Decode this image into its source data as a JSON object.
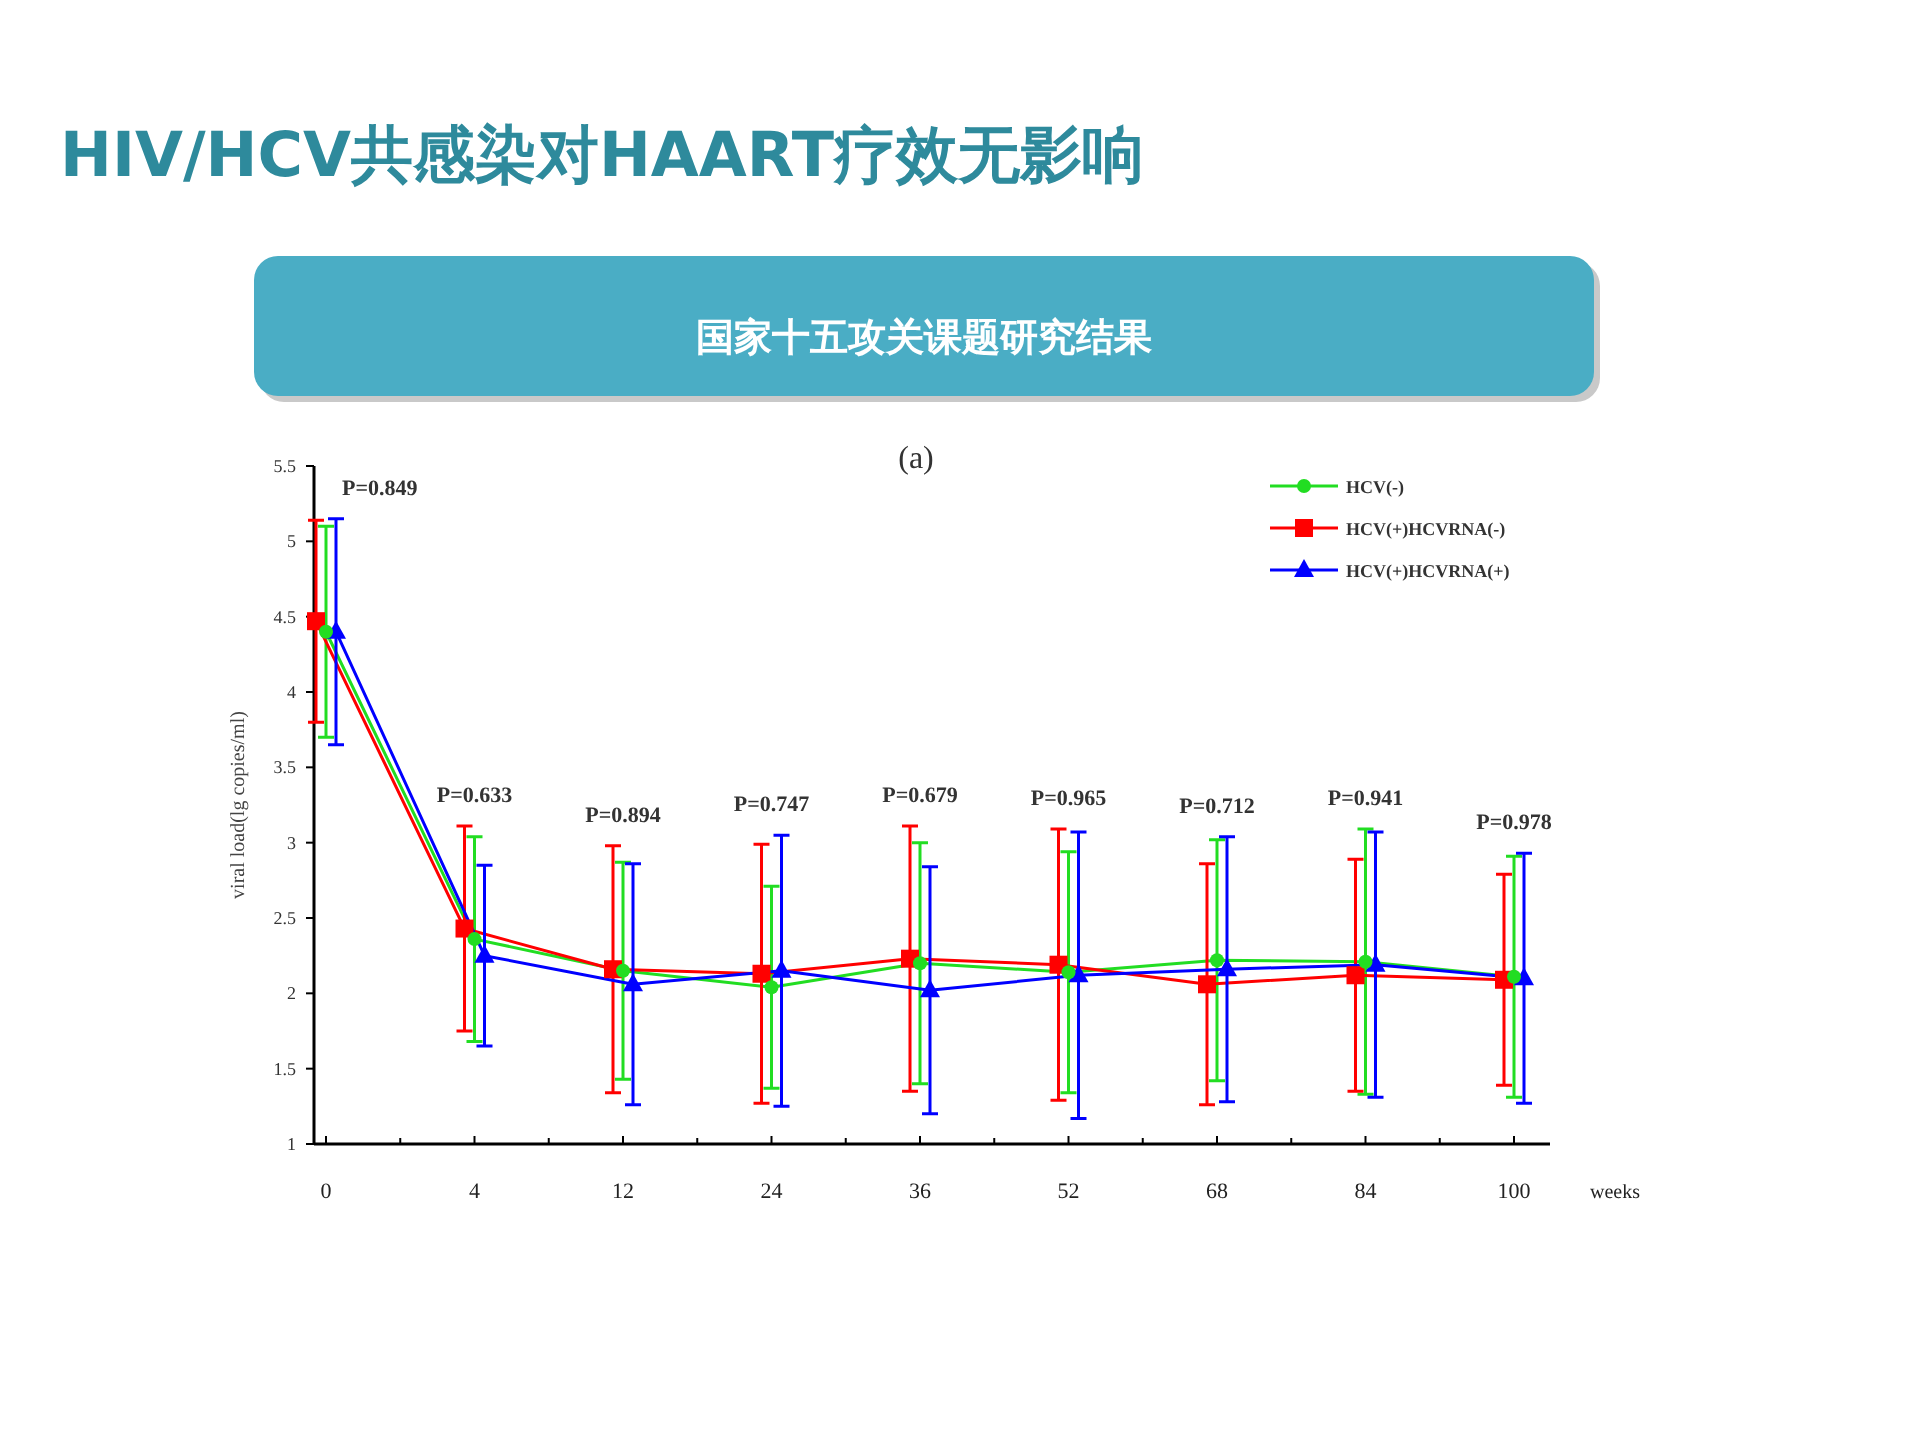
{
  "chart_data": {
    "type": "line",
    "title": "HIV/HCV共感染对HAART疗效无影响",
    "subtitle": "国家十五攻关课题研究结果",
    "xlabel": "weeks",
    "ylabel": "viral load(lg copies/ml)",
    "categories": [
      "0",
      "4",
      "12",
      "24",
      "36",
      "52",
      "68",
      "84",
      "100"
    ],
    "ylim": [
      1,
      5.5
    ],
    "yticks": [
      1,
      1.5,
      2,
      2.5,
      3,
      3.5,
      4,
      4.5,
      5,
      5.5
    ],
    "legend": "top right",
    "grid": false,
    "line_style": "solid",
    "series": [
      {
        "name": "HCV(-)",
        "color": "#22dd22",
        "marker": "circle",
        "values": [
          4.4,
          2.36,
          2.15,
          2.04,
          2.2,
          2.14,
          2.22,
          2.21,
          2.11
        ],
        "errors": [
          0.7,
          0.68,
          0.72,
          0.67,
          0.8,
          0.8,
          0.8,
          0.88,
          0.8
        ]
      },
      {
        "name": "HCV(+)HCVRNA(-)",
        "color": "#ff0000",
        "marker": "square",
        "values": [
          4.47,
          2.43,
          2.16,
          2.13,
          2.23,
          2.19,
          2.06,
          2.12,
          2.09
        ],
        "errors": [
          0.67,
          0.68,
          0.82,
          0.86,
          0.88,
          0.9,
          0.8,
          0.77,
          0.7
        ]
      },
      {
        "name": "HCV(+)HCVRNA(+)",
        "color": "#0000ff",
        "marker": "triangle",
        "values": [
          4.4,
          2.25,
          2.06,
          2.15,
          2.02,
          2.12,
          2.16,
          2.19,
          2.1
        ],
        "errors": [
          0.75,
          0.6,
          0.8,
          0.9,
          0.82,
          0.95,
          0.88,
          0.88,
          0.83
        ]
      }
    ],
    "annotations": [
      "(a)",
      "P=0.849",
      "P=0.633",
      "P=0.894",
      "P=0.747",
      "P=0.679",
      "P=0.965",
      "P=0.712",
      "P=0.941",
      "P=0.978"
    ]
  }
}
